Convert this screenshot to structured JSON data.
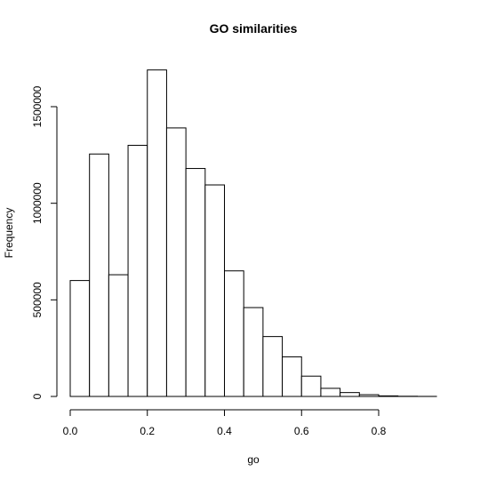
{
  "chart_data": {
    "type": "bar",
    "title": "GO similarities",
    "xlabel": "go",
    "ylabel": "Frequency",
    "bin_width": 0.05,
    "bin_starts": [
      0.0,
      0.05,
      0.1,
      0.15,
      0.2,
      0.25,
      0.3,
      0.35,
      0.4,
      0.45,
      0.5,
      0.55,
      0.6,
      0.65,
      0.7,
      0.75,
      0.8,
      0.85,
      0.9
    ],
    "values": [
      600000,
      1255000,
      630000,
      1300000,
      1690000,
      1390000,
      1180000,
      1095000,
      650000,
      460000,
      310000,
      205000,
      105000,
      42000,
      20000,
      9000,
      3000,
      1000,
      300
    ],
    "xlim": [
      0.0,
      0.95
    ],
    "ylim": [
      0,
      1750000
    ],
    "x_ticks": [
      0.0,
      0.2,
      0.4,
      0.6,
      0.8
    ],
    "x_tick_labels": [
      "0.0",
      "0.2",
      "0.4",
      "0.6",
      "0.8"
    ],
    "y_ticks": [
      0,
      500000,
      1000000,
      1500000
    ],
    "y_tick_labels": [
      "0",
      "500000",
      "1000000",
      "1500000"
    ],
    "grid": false,
    "legend": "none"
  }
}
